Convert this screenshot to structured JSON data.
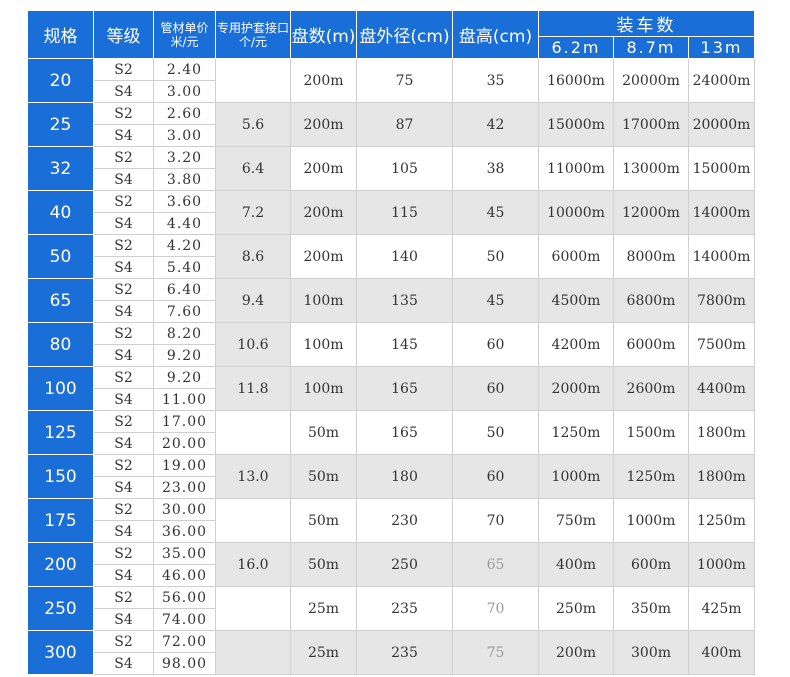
{
  "headers": {
    "spec": "规格",
    "grade": "等级",
    "price_line1": "管材单价",
    "price_line2": "米/元",
    "connector_line1": "专用护套接口",
    "connector_line2": "个/元",
    "coil_count": "盘数(m)",
    "coil_outer_diameter": "盘外径(cm)",
    "coil_height": "盘高(cm)",
    "truck_load": "装车数",
    "truck_lengths": [
      "6.2m",
      "8.7m",
      "13m"
    ]
  },
  "rows": [
    {
      "spec": "20",
      "grades": [
        {
          "grade": "S2",
          "price": "2.40"
        },
        {
          "grade": "S4",
          "price": "3.00"
        }
      ],
      "connector": "",
      "coil": "200m",
      "diameter": "75",
      "height": "35",
      "truck": [
        "16000m",
        "20000m",
        "24000m"
      ]
    },
    {
      "spec": "25",
      "grades": [
        {
          "grade": "S2",
          "price": "2.60"
        },
        {
          "grade": "S4",
          "price": "3.00"
        }
      ],
      "connector": "5.6",
      "coil": "200m",
      "diameter": "87",
      "height": "42",
      "truck": [
        "15000m",
        "17000m",
        "20000m"
      ]
    },
    {
      "spec": "32",
      "grades": [
        {
          "grade": "S2",
          "price": "3.20"
        },
        {
          "grade": "S4",
          "price": "3.80"
        }
      ],
      "connector": "6.4",
      "coil": "200m",
      "diameter": "105",
      "height": "38",
      "truck": [
        "11000m",
        "13000m",
        "15000m"
      ]
    },
    {
      "spec": "40",
      "grades": [
        {
          "grade": "S2",
          "price": "3.60"
        },
        {
          "grade": "S4",
          "price": "4.40"
        }
      ],
      "connector": "7.2",
      "coil": "200m",
      "diameter": "115",
      "height": "45",
      "truck": [
        "10000m",
        "12000m",
        "14000m"
      ]
    },
    {
      "spec": "50",
      "grades": [
        {
          "grade": "S2",
          "price": "4.20"
        },
        {
          "grade": "S4",
          "price": "5.40"
        }
      ],
      "connector": "8.6",
      "coil": "200m",
      "diameter": "140",
      "height": "50",
      "truck": [
        "6000m",
        "8000m",
        "14000m"
      ]
    },
    {
      "spec": "65",
      "grades": [
        {
          "grade": "S2",
          "price": "6.40"
        },
        {
          "grade": "S4",
          "price": "7.60"
        }
      ],
      "connector": "9.4",
      "coil": "100m",
      "diameter": "135",
      "height": "45",
      "truck": [
        "4500m",
        "6800m",
        "7800m"
      ]
    },
    {
      "spec": "80",
      "grades": [
        {
          "grade": "S2",
          "price": "8.20"
        },
        {
          "grade": "S4",
          "price": "9.20"
        }
      ],
      "connector": "10.6",
      "coil": "100m",
      "diameter": "145",
      "height": "60",
      "truck": [
        "4200m",
        "6000m",
        "7500m"
      ]
    },
    {
      "spec": "100",
      "grades": [
        {
          "grade": "S2",
          "price": "9.20"
        },
        {
          "grade": "S4",
          "price": "11.00"
        }
      ],
      "connector": "11.8",
      "coil": "100m",
      "diameter": "165",
      "height": "60",
      "truck": [
        "2000m",
        "2600m",
        "4400m"
      ]
    },
    {
      "spec": "125",
      "grades": [
        {
          "grade": "S2",
          "price": "17.00"
        },
        {
          "grade": "S4",
          "price": "20.00"
        }
      ],
      "connector": "",
      "coil": "50m",
      "diameter": "165",
      "height": "50",
      "truck": [
        "1250m",
        "1500m",
        "1800m"
      ]
    },
    {
      "spec": "150",
      "grades": [
        {
          "grade": "S2",
          "price": "19.00"
        },
        {
          "grade": "S4",
          "price": "23.00"
        }
      ],
      "connector": "13.0",
      "coil": "50m",
      "diameter": "180",
      "height": "60",
      "truck": [
        "1000m",
        "1250m",
        "1800m"
      ]
    },
    {
      "spec": "175",
      "grades": [
        {
          "grade": "S2",
          "price": "30.00"
        },
        {
          "grade": "S4",
          "price": "36.00"
        }
      ],
      "connector": "",
      "coil": "50m",
      "diameter": "230",
      "height": "70",
      "truck": [
        "750m",
        "1000m",
        "1250m"
      ]
    },
    {
      "spec": "200",
      "grades": [
        {
          "grade": "S2",
          "price": "35.00"
        },
        {
          "grade": "S4",
          "price": "46.00"
        }
      ],
      "connector": "16.0",
      "coil": "50m",
      "diameter": "250",
      "height": "65",
      "truck": [
        "400m",
        "600m",
        "1000m"
      ]
    },
    {
      "spec": "250",
      "grades": [
        {
          "grade": "S2",
          "price": "56.00"
        },
        {
          "grade": "S4",
          "price": "74.00"
        }
      ],
      "connector": "",
      "coil": "25m",
      "diameter": "235",
      "height": "70",
      "truck": [
        "250m",
        "350m",
        "425m"
      ]
    },
    {
      "spec": "300",
      "grades": [
        {
          "grade": "S2",
          "price": "72.00"
        },
        {
          "grade": "S4",
          "price": "98.00"
        }
      ],
      "connector": "",
      "coil": "25m",
      "diameter": "235",
      "height": "75",
      "truck": [
        "200m",
        "300m",
        "400m"
      ]
    }
  ],
  "style": {
    "header_blue": "#1a6ed8",
    "shade_gray": "#e6e6e6",
    "border_gray": "#cfcfcf"
  }
}
